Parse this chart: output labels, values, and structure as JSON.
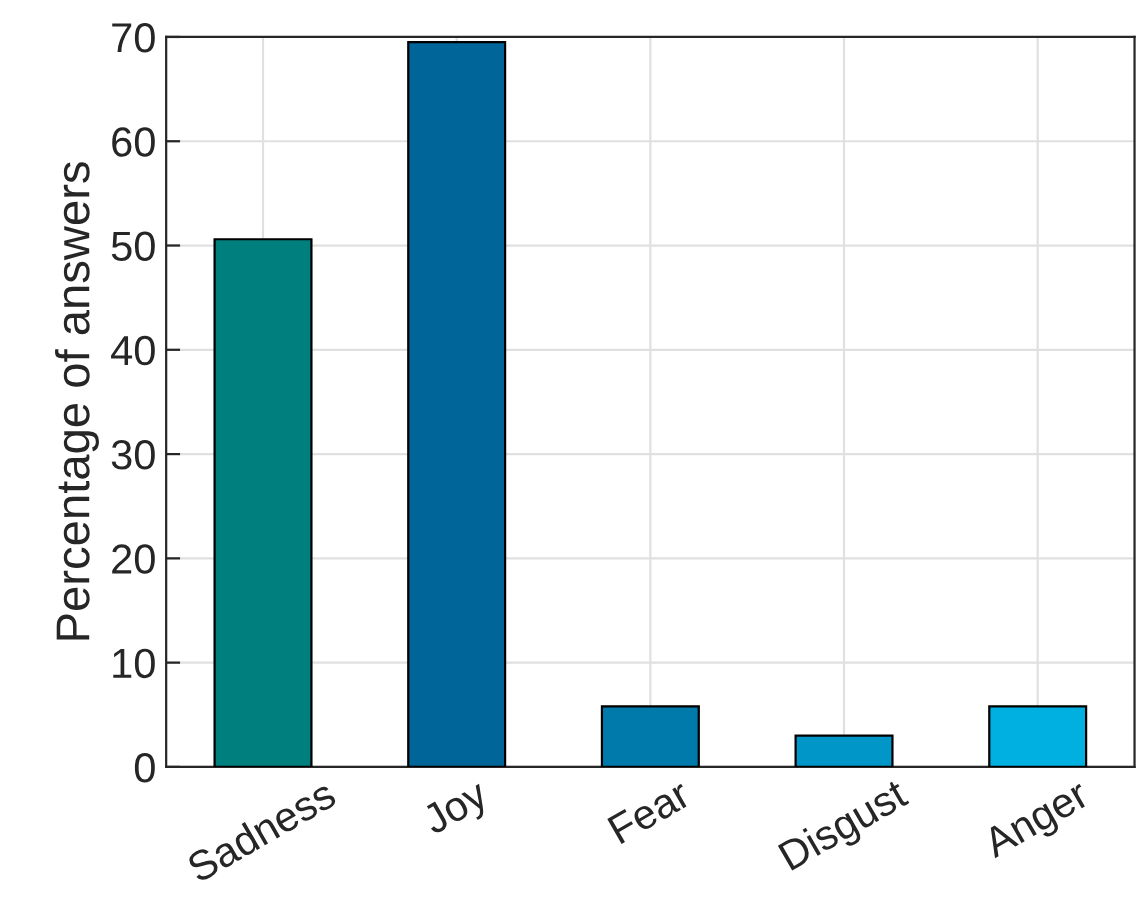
{
  "chart_data": {
    "type": "bar",
    "ylabel": "Percentage of answers",
    "categories": [
      "Sadness",
      "Joy",
      "Fear",
      "Disgust",
      "Anger"
    ],
    "values": [
      50.6,
      69.5,
      5.8,
      3.0,
      5.8
    ],
    "colors": [
      "#007f7f",
      "#006699",
      "#007aab",
      "#0096c8",
      "#00b0e0"
    ],
    "ylim": [
      0,
      70
    ],
    "yticks": [
      0,
      10,
      20,
      30,
      40,
      50,
      60,
      70
    ],
    "grid": true
  }
}
